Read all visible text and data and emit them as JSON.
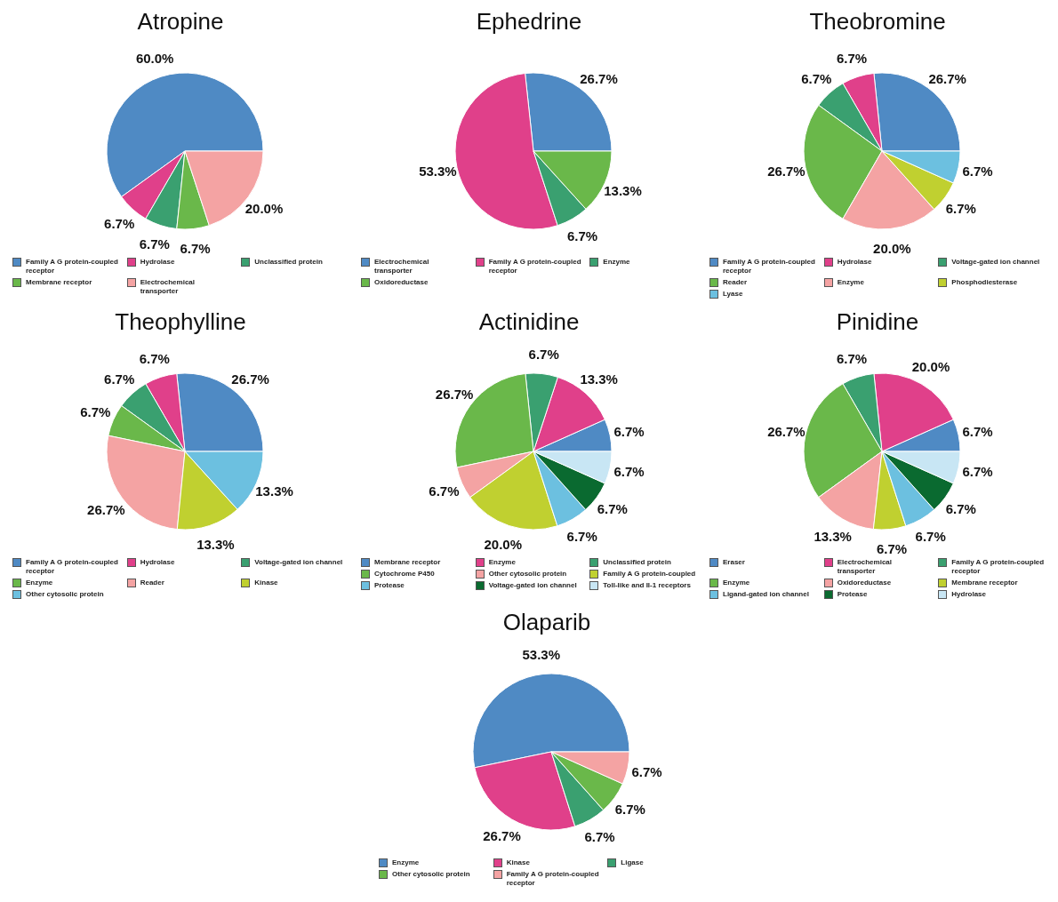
{
  "chart_data": [
    {
      "type": "pie",
      "title": "Atropine",
      "legend": "bottom",
      "categories": [
        "Family A G protein-coupled receptor",
        "Hydrolase",
        "Unclassified protein",
        "Membrane receptor",
        "Electrochemical transporter"
      ],
      "values": [
        60,
        6.7,
        6.7,
        6.7,
        20
      ],
      "value_labels": [
        "60.0%",
        "6.7%",
        "6.7%",
        "6.7%",
        "20.0%"
      ],
      "colors": [
        "#4f8ac4",
        "#e0408a",
        "#3aa070",
        "#6ab84a",
        "#f4a3a3"
      ]
    },
    {
      "type": "pie",
      "title": "Ephedrine",
      "legend": "bottom",
      "categories": [
        "Electrochemical transporter",
        "Family A G protein-coupled receptor",
        "Enzyme",
        "Oxidoreductase"
      ],
      "values": [
        26.7,
        53.3,
        6.7,
        13.3
      ],
      "value_labels": [
        "26.7%",
        "53.3%",
        "6.7%",
        "13.3%"
      ],
      "colors": [
        "#4f8ac4",
        "#e0408a",
        "#3aa070",
        "#6ab84a"
      ]
    },
    {
      "type": "pie",
      "title": "Theobromine",
      "legend": "bottom",
      "categories": [
        "Family A G protein-coupled receptor",
        "Hydrolase",
        "Voltage-gated ion channel",
        "Reader",
        "Enzyme",
        "Phosphodiesterase",
        "Lyase"
      ],
      "values": [
        26.7,
        6.7,
        6.7,
        26.7,
        20,
        6.7,
        6.7
      ],
      "value_labels": [
        "26.7%",
        "6.7%",
        "6.7%",
        "26.7%",
        "20.0%",
        "6.7%",
        "6.7%"
      ],
      "colors": [
        "#4f8ac4",
        "#e0408a",
        "#3aa070",
        "#6ab84a",
        "#f4a3a3",
        "#c0d030",
        "#6cc0e0"
      ]
    },
    {
      "type": "pie",
      "title": "Theophylline",
      "legend": "bottom",
      "categories": [
        "Family A G protein-coupled receptor",
        "Hydrolase",
        "Voltage-gated ion channel",
        "Enzyme",
        "Reader",
        "Kinase",
        "Other cytosolic protein"
      ],
      "values": [
        26.7,
        6.7,
        6.7,
        6.7,
        26.7,
        13.3,
        13.3
      ],
      "value_labels": [
        "26.7%",
        "6.7%",
        "6.7%",
        "6.7%",
        "26.7%",
        "13.3%",
        "13.3%"
      ],
      "colors": [
        "#4f8ac4",
        "#e0408a",
        "#3aa070",
        "#6ab84a",
        "#f4a3a3",
        "#c0d030",
        "#6cc0e0"
      ]
    },
    {
      "type": "pie",
      "title": "Actinidine",
      "legend": "bottom",
      "categories": [
        "Membrane receptor",
        "Enzyme",
        "Unclassified protein",
        "Cytochrome P450",
        "Other cytosolic protein",
        "Family A G protein-coupled",
        "Protease",
        "Voltage-gated ion channel",
        "Toll-like and Il-1 receptors"
      ],
      "values": [
        6.7,
        13.3,
        6.7,
        26.7,
        6.7,
        20,
        6.7,
        6.7,
        6.7
      ],
      "value_labels": [
        "6.7%",
        "13.3%",
        "6.7%",
        "26.7%",
        "6.7%",
        "20.0%",
        "6.7%",
        "6.7%",
        "6.7%"
      ],
      "colors": [
        "#4f8ac4",
        "#e0408a",
        "#3aa070",
        "#6ab84a",
        "#f4a3a3",
        "#c0d030",
        "#6cc0e0",
        "#0a6a30",
        "#c8e6f4"
      ]
    },
    {
      "type": "pie",
      "title": "Pinidine",
      "legend": "bottom",
      "categories": [
        "Eraser",
        "Electrochemical transporter",
        "Family A G protein-coupled receptor",
        "Enzyme",
        "Oxidoreductase",
        "Membrane receptor",
        "Ligand-gated ion channel",
        "Protease",
        "Hydrolase"
      ],
      "values": [
        6.7,
        20,
        6.7,
        26.7,
        13.3,
        6.7,
        6.7,
        6.7,
        6.7
      ],
      "value_labels": [
        "6.7%",
        "20.0%",
        "6.7%",
        "26.7%",
        "13.3%",
        "6.7%",
        "6.7%",
        "6.7%",
        "6.7%"
      ],
      "colors": [
        "#4f8ac4",
        "#e0408a",
        "#3aa070",
        "#6ab84a",
        "#f4a3a3",
        "#c0d030",
        "#6cc0e0",
        "#0a6a30",
        "#c8e6f4"
      ]
    },
    {
      "type": "pie",
      "title": "Olaparib",
      "legend": "bottom",
      "categories": [
        "Enzyme",
        "Kinase",
        "Ligase",
        "Other cytosolic protein",
        "Family A G protein-coupled receptor"
      ],
      "values": [
        53.3,
        26.7,
        6.7,
        6.7,
        6.7
      ],
      "value_labels": [
        "53.3%",
        "26.7%",
        "6.7%",
        "6.7%",
        "6.7%"
      ],
      "colors": [
        "#4f8ac4",
        "#e0408a",
        "#3aa070",
        "#6ab84a",
        "#f4a3a3"
      ]
    }
  ]
}
